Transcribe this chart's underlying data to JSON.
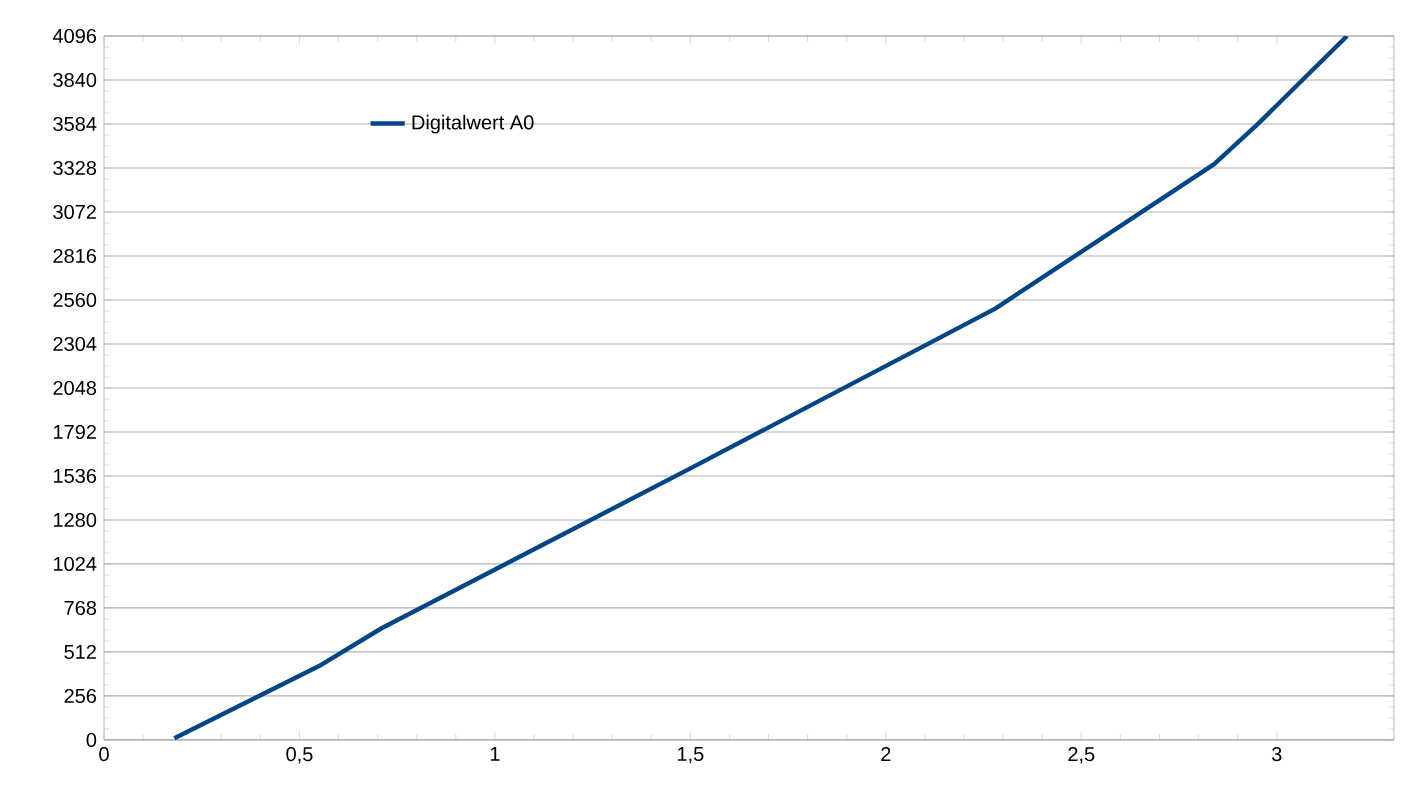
{
  "chart_data": {
    "type": "line",
    "x": [
      0.18,
      0.55,
      0.71,
      1.5,
      2.28,
      2.84,
      2.95,
      3.18
    ],
    "series": [
      {
        "name": "Digitalwert A0",
        "color": "#004586",
        "values": [
          10,
          430,
          650,
          1580,
          2510,
          3350,
          3580,
          4096
        ]
      }
    ],
    "xlim": [
      0,
      3.3
    ],
    "xticks": [
      {
        "value": 0,
        "label": "0"
      },
      {
        "value": 0.5,
        "label": "0,5"
      },
      {
        "value": 1,
        "label": "1"
      },
      {
        "value": 1.5,
        "label": "1,5"
      },
      {
        "value": 2,
        "label": "2"
      },
      {
        "value": 2.5,
        "label": "2,5"
      },
      {
        "value": 3,
        "label": "3"
      }
    ],
    "ylim": [
      0,
      4096
    ],
    "yticks": [
      0,
      256,
      512,
      768,
      1024,
      1280,
      1536,
      1792,
      2048,
      2304,
      2560,
      2816,
      3072,
      3328,
      3584,
      3840,
      4096
    ],
    "grid": "y",
    "legend": "top left",
    "marker": "none",
    "line_style": "solid"
  }
}
